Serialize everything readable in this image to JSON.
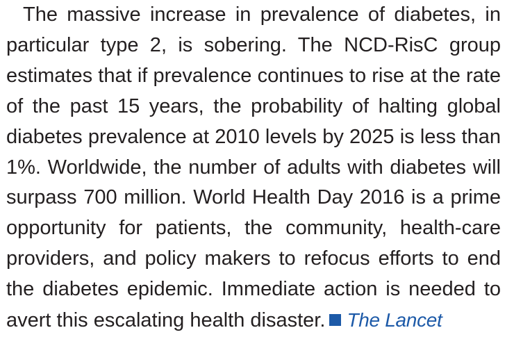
{
  "article": {
    "body": "The massive increase in prevalence of diabetes, in particular type 2, is sobering. The NCD-RisC group estimates that if prevalence continues to rise at the rate of the past 15 years, the probability of halting global diabetes prevalence at 2010 levels by 2025 is less than 1%. Worldwide, the number of adults with diabetes will surpass 700 million. World Health Day 2016 is a prime opportunity for patients, the community, health-care providers, and policy makers to refocus efforts to end the diabetes epidemic. Immediate action is needed to avert this escalating health disaster.",
    "signature": "The Lancet",
    "end_mark_icon": "filled-square-icon",
    "colors": {
      "text": "#231f20",
      "accent": "#1d5aa8"
    }
  }
}
